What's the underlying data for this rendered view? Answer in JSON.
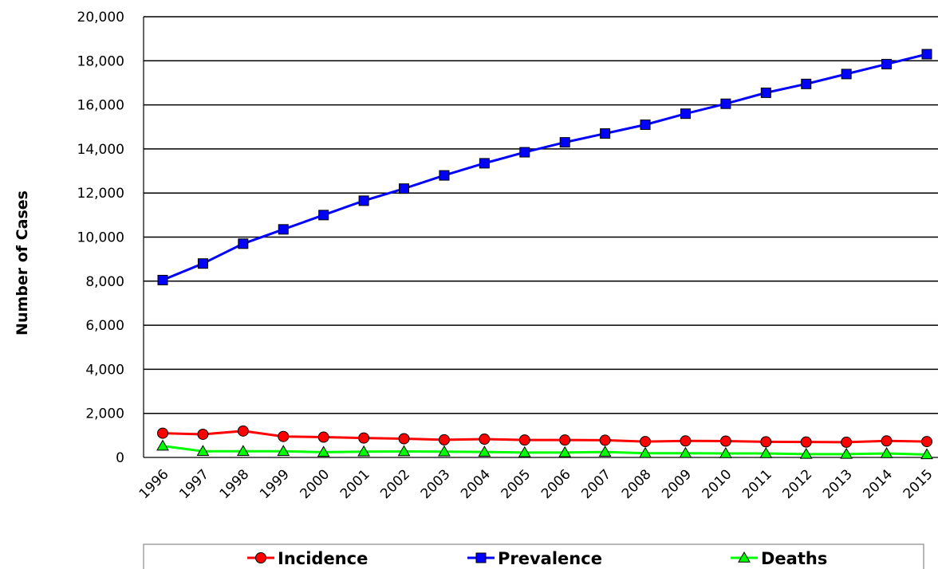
{
  "chart_data": {
    "type": "line",
    "title": "",
    "xlabel": "",
    "ylabel": "Number of Cases",
    "ylim": [
      0,
      20000
    ],
    "yticks": [
      0,
      2000,
      4000,
      6000,
      8000,
      10000,
      12000,
      14000,
      16000,
      18000,
      20000
    ],
    "ytick_labels": [
      "0",
      "2,000",
      "4,000",
      "6,000",
      "8,000",
      "10,000",
      "12,000",
      "14,000",
      "16,000",
      "18,000",
      "20,000"
    ],
    "categories": [
      "1996",
      "1997",
      "1998",
      "1999",
      "2000",
      "2001",
      "2002",
      "2003",
      "2004",
      "2005",
      "2006",
      "2007",
      "2008",
      "2009",
      "2010",
      "2011",
      "2012",
      "2013",
      "2014",
      "2015"
    ],
    "grid": true,
    "legend_position": "bottom",
    "series": [
      {
        "name": "Incidence",
        "color": "#ff0000",
        "marker": "circle",
        "values": [
          1100,
          1050,
          1200,
          950,
          920,
          880,
          850,
          800,
          830,
          790,
          790,
          780,
          720,
          750,
          740,
          710,
          700,
          690,
          750,
          720
        ]
      },
      {
        "name": "Prevalence",
        "color": "#0000ff",
        "marker": "square",
        "values": [
          8050,
          8800,
          9700,
          10350,
          11000,
          11650,
          12200,
          12800,
          13350,
          13850,
          14300,
          14700,
          15100,
          15600,
          16050,
          16550,
          16950,
          17400,
          17850,
          18300
        ]
      },
      {
        "name": "Deaths",
        "color": "#00ff00",
        "marker": "triangle",
        "values": [
          520,
          280,
          280,
          280,
          240,
          260,
          270,
          260,
          250,
          220,
          220,
          250,
          190,
          190,
          180,
          180,
          150,
          150,
          180,
          130
        ]
      }
    ]
  }
}
